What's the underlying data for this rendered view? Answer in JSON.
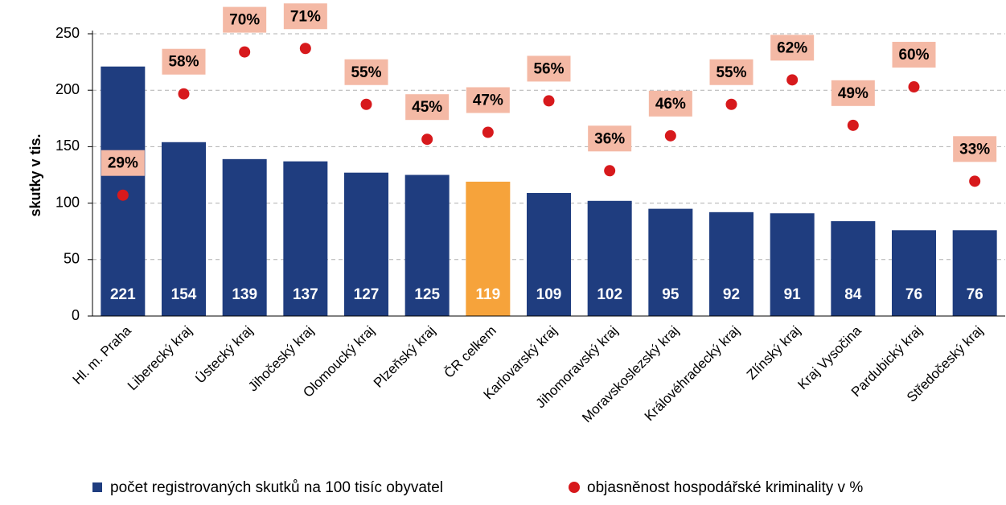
{
  "chart_data": {
    "type": "bar",
    "y_label": "skutky v tis.",
    "categories": [
      "Hl. m. Praha",
      "Liberecký kraj",
      "Ústecký kraj",
      "Jihočeský kraj",
      "Olomoucký kraj",
      "Plzeňský kraj",
      "ČR celkem",
      "Karlovarský kraj",
      "Jihomoravský kraj",
      "Moravskoslezský kraj",
      "Královéhradecký kraj",
      "Zlínský kraj",
      "Kraj Vysočina",
      "Pardubický kraj",
      "Středočeský kraj"
    ],
    "series": [
      {
        "name": "počet registrovaných skutků na 100 tisíc obyvatel",
        "type": "bar",
        "color": "#1f3d7f",
        "colors": [
          "#1f3d7f",
          "#1f3d7f",
          "#1f3d7f",
          "#1f3d7f",
          "#1f3d7f",
          "#1f3d7f",
          "#f6a33b",
          "#1f3d7f",
          "#1f3d7f",
          "#1f3d7f",
          "#1f3d7f",
          "#1f3d7f",
          "#1f3d7f",
          "#1f3d7f",
          "#1f3d7f"
        ],
        "values": [
          221,
          154,
          139,
          137,
          127,
          125,
          119,
          109,
          102,
          95,
          92,
          91,
          84,
          76,
          76
        ]
      },
      {
        "name": "objasněnost hospodářské kriminality v %",
        "type": "scatter",
        "color": "#d7191c",
        "axis": "y2",
        "label_color": "#f4b9a5",
        "values": [
          29,
          58,
          70,
          71,
          55,
          45,
          47,
          56,
          36,
          46,
          55,
          62,
          49,
          60,
          33
        ],
        "value_labels": [
          "29%",
          "58%",
          "70%",
          "71%",
          "55%",
          "45%",
          "47%",
          "56%",
          "36%",
          "46%",
          "55%",
          "62%",
          "49%",
          "60%",
          "33%"
        ]
      }
    ],
    "ylim": [
      0,
      250
    ],
    "yticks": [
      0,
      50,
      100,
      150,
      200,
      250
    ],
    "y2lim": [
      -5.6,
      75.2
    ],
    "grid": true
  }
}
